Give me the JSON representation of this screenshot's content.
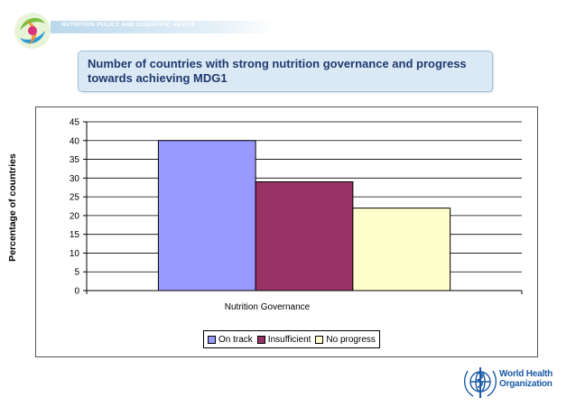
{
  "header": {
    "program_name": "NUTRITION POLICY AND SCIENTIFIC ADVICE"
  },
  "title": "Number of countries with strong nutrition governance and progress towards achieving MDG1",
  "chart_data": {
    "type": "bar",
    "categories": [
      "Nutrition Governance"
    ],
    "series": [
      {
        "name": "On track",
        "values": [
          40
        ],
        "color": "#9999ff"
      },
      {
        "name": "Insufficient",
        "values": [
          29
        ],
        "color": "#993366"
      },
      {
        "name": "No progress",
        "values": [
          22
        ],
        "color": "#ffffcc"
      }
    ],
    "xlabel": "Nutrition Governance",
    "ylabel": "Percentage of countries",
    "ylim": [
      0,
      45
    ],
    "yticks": [
      0,
      5,
      10,
      15,
      20,
      25,
      30,
      35,
      40,
      45
    ],
    "grid": true,
    "legend_position": "bottom"
  },
  "legend_labels": [
    "On track",
    "Insufficient",
    "No progress"
  ],
  "footer": {
    "org_line1": "World Health",
    "org_line2": "Organization"
  },
  "colors": {
    "title_text": "#1f3a6e",
    "title_background": "#dbe9f5",
    "who_blue": "#1b5aa6"
  }
}
